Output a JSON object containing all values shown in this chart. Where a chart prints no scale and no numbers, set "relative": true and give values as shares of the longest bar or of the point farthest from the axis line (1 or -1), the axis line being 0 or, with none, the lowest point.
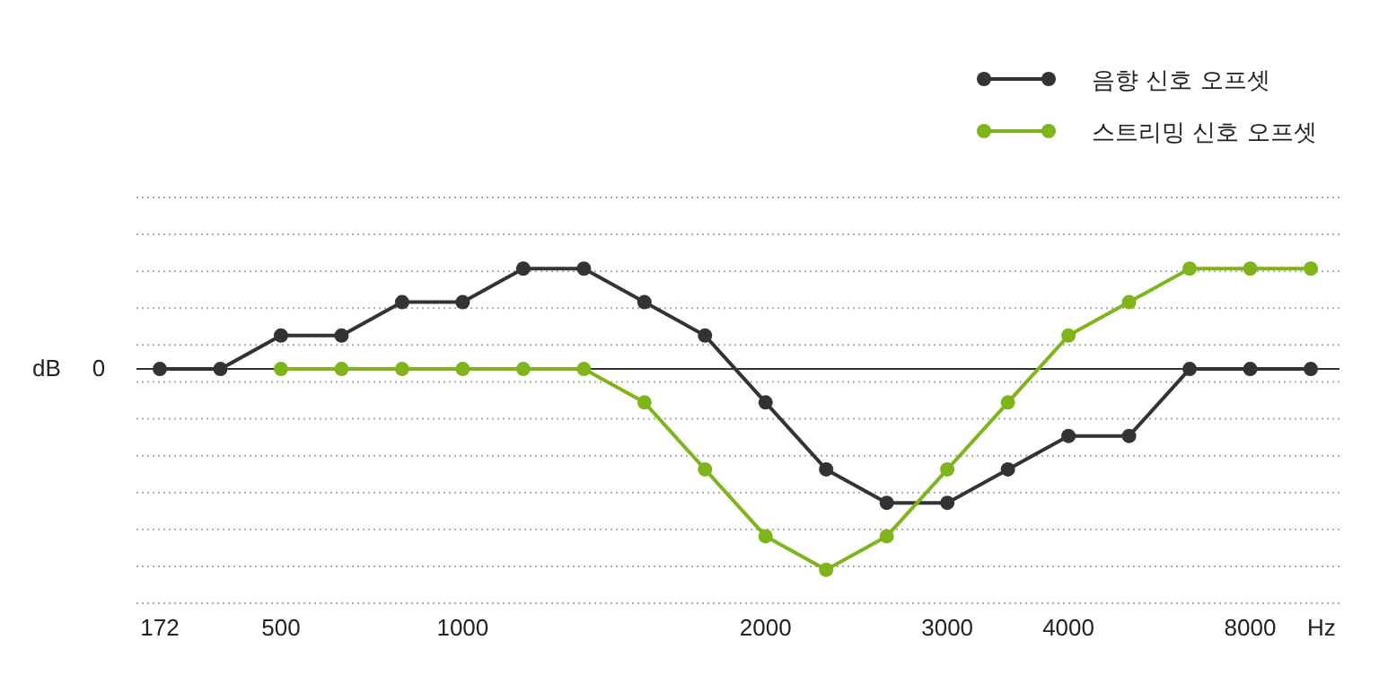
{
  "chart_data": {
    "type": "line",
    "relative": true,
    "ylabel": "dB",
    "xlabel": "Hz",
    "categories": [
      "172",
      null,
      "500",
      null,
      null,
      "1000",
      null,
      null,
      null,
      null,
      "2000",
      null,
      null,
      "3000",
      null,
      "4000",
      null,
      null,
      "8000",
      null
    ],
    "series": [
      {
        "name": "음향 신호 오프셋",
        "color": "#333333",
        "values": [
          0,
          0,
          0.1667,
          0.1667,
          0.3333,
          0.3333,
          0.5,
          0.5,
          0.3333,
          0.1667,
          -0.1667,
          -0.5,
          -0.6667,
          -0.6667,
          -0.5,
          -0.3333,
          -0.3333,
          0,
          0,
          0
        ]
      },
      {
        "name": "스트리밍 신호 오프셋",
        "color": "#7fb51a",
        "values": [
          null,
          null,
          0,
          0,
          0,
          0,
          0,
          0,
          -0.1667,
          -0.5,
          -0.8333,
          -1,
          -0.8333,
          -0.5,
          -0.1667,
          0.1667,
          0.3333,
          0.5,
          0.5,
          0.5
        ]
      }
    ],
    "ref_lines": [
      {
        "axis": "y",
        "value": 0,
        "label": "0",
        "color": "#333333"
      }
    ],
    "grid": "y",
    "legend": "top right",
    "marker": "circle",
    "line_style": "solid"
  }
}
